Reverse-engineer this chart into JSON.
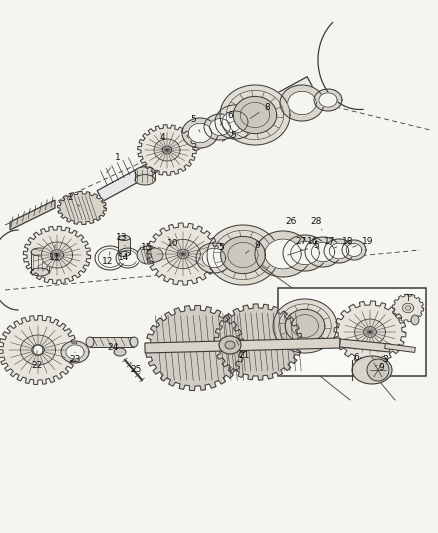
{
  "bg_color": "#f5f5f0",
  "lc": "#3a3a3a",
  "figsize": [
    4.38,
    5.33
  ],
  "dpi": 100,
  "callouts": [
    [
      "1",
      118,
      158,
      105,
      175
    ],
    [
      "2",
      70,
      198,
      82,
      208
    ],
    [
      "3",
      385,
      360,
      373,
      368
    ],
    [
      "4",
      162,
      138,
      162,
      150
    ],
    [
      "5",
      193,
      120,
      200,
      132
    ],
    [
      "5",
      233,
      135,
      220,
      143
    ],
    [
      "5",
      221,
      248,
      214,
      258
    ],
    [
      "5",
      316,
      246,
      285,
      256
    ],
    [
      "6",
      230,
      115,
      218,
      127
    ],
    [
      "6",
      356,
      358,
      347,
      345
    ],
    [
      "8",
      267,
      107,
      248,
      120
    ],
    [
      "9",
      257,
      245,
      243,
      255
    ],
    [
      "9",
      381,
      368,
      370,
      355
    ],
    [
      "10",
      173,
      244,
      180,
      254
    ],
    [
      "11",
      55,
      258,
      55,
      242
    ],
    [
      "12",
      108,
      262,
      110,
      252
    ],
    [
      "13",
      122,
      238,
      125,
      246
    ],
    [
      "14",
      124,
      258,
      127,
      252
    ],
    [
      "15",
      147,
      247,
      150,
      254
    ],
    [
      "16",
      313,
      242,
      298,
      252
    ],
    [
      "17",
      330,
      242,
      315,
      250
    ],
    [
      "18",
      348,
      242,
      332,
      249
    ],
    [
      "19",
      368,
      242,
      350,
      248
    ],
    [
      "21",
      244,
      355,
      235,
      338
    ],
    [
      "22",
      37,
      365,
      37,
      348
    ],
    [
      "23",
      75,
      360,
      75,
      352
    ],
    [
      "24",
      113,
      348,
      108,
      342
    ],
    [
      "25",
      136,
      370,
      130,
      362
    ],
    [
      "26",
      291,
      222,
      288,
      232
    ],
    [
      "27",
      301,
      242,
      305,
      238
    ],
    [
      "28",
      316,
      222,
      322,
      230
    ]
  ]
}
